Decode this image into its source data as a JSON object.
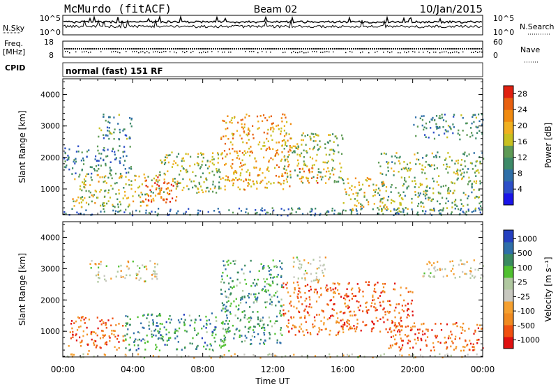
{
  "header": {
    "station": "McMurdo (fitACF)",
    "beam": "Beam 02",
    "date": "10/Jan/2015"
  },
  "status_panels": {
    "nsky_label": "N.Sky",
    "nsky_ticks": [
      "10^5",
      "10^0"
    ],
    "nsearch_label": "N.Search",
    "nsearch_ticks": [
      "10^5",
      "10^0"
    ],
    "freq_label": "Freq.",
    "freq_unit": "[MHz]",
    "freq_ticks": [
      "18",
      "8"
    ],
    "nave_label": "Nave",
    "nave_ticks": [
      "60",
      "0"
    ],
    "cpid_label": "CPID",
    "cpid_value": "normal (fast) 151 RF"
  },
  "chart_data": [
    {
      "type": "heatmap",
      "name": "power",
      "ylabel": "Slant Range [km]",
      "xlabel": "Time UT",
      "x_ticks": [
        "00:00",
        "04:00",
        "08:00",
        "12:00",
        "16:00",
        "20:00",
        "00:00"
      ],
      "xlim_hours": [
        0,
        24
      ],
      "ylim": [
        180,
        4500
      ],
      "y_ticks": [
        1000,
        2000,
        3000,
        4000
      ],
      "colorbar": {
        "label": "Power [dB]",
        "ticks": [
          "4",
          "8",
          "12",
          "16",
          "20",
          "24",
          "28"
        ],
        "range": [
          0,
          30
        ],
        "colors": [
          "#1a14e8",
          "#2d4fc8",
          "#2f6fa8",
          "#3d8a68",
          "#5e9a55",
          "#c8c020",
          "#f0b020",
          "#f08a10",
          "#e86010",
          "#e02010"
        ]
      },
      "echo_regions": [
        {
          "t0": 0.0,
          "t1": 24.0,
          "r0": 180,
          "r1": 420,
          "level": 0.3
        },
        {
          "t0": 0.5,
          "t1": 5.5,
          "r0": 450,
          "r1": 1500,
          "level": 0.55
        },
        {
          "t0": 4.5,
          "t1": 6.5,
          "r0": 600,
          "r1": 1400,
          "level": 0.85
        },
        {
          "t0": 5.5,
          "t1": 9.0,
          "r0": 900,
          "r1": 2200,
          "level": 0.5
        },
        {
          "t0": 9.0,
          "t1": 13.0,
          "r0": 1000,
          "r1": 3400,
          "level": 0.7
        },
        {
          "t0": 12.5,
          "t1": 16.0,
          "r0": 1200,
          "r1": 2800,
          "level": 0.5
        },
        {
          "t0": 13.5,
          "t1": 15.5,
          "r0": 1200,
          "r1": 1700,
          "level": 0.8
        },
        {
          "t0": 16.0,
          "t1": 18.5,
          "r0": 300,
          "r1": 1400,
          "level": 0.6
        },
        {
          "t0": 18.0,
          "t1": 24.0,
          "r0": 300,
          "r1": 2200,
          "level": 0.45
        },
        {
          "t0": 20.0,
          "t1": 24.0,
          "r0": 2600,
          "r1": 3400,
          "level": 0.35
        },
        {
          "t0": 2.0,
          "t1": 4.0,
          "r0": 2600,
          "r1": 3400,
          "level": 0.35
        },
        {
          "t0": 0.0,
          "t1": 4.0,
          "r0": 1500,
          "r1": 2400,
          "level": 0.3
        }
      ]
    },
    {
      "type": "heatmap",
      "name": "velocity",
      "ylabel": "Slant Range [km]",
      "xlabel": "Time UT",
      "x_ticks": [
        "00:00",
        "04:00",
        "08:00",
        "12:00",
        "16:00",
        "20:00",
        "00:00"
      ],
      "xlim_hours": [
        0,
        24
      ],
      "ylim": [
        180,
        4500
      ],
      "y_ticks": [
        1000,
        2000,
        3000,
        4000
      ],
      "colorbar": {
        "label": "Velocity [m s⁻¹]",
        "ticks": [
          "1000",
          "500",
          "100",
          "25",
          "-25",
          "-100",
          "-500",
          "-1000"
        ],
        "range": [
          -1000,
          1000
        ],
        "colors": [
          "#e01010",
          "#f05010",
          "#f08a20",
          "#f5a030",
          "#c8c8c0",
          "#b0c8a0",
          "#50c030",
          "#3a8a60",
          "#2f6fa8",
          "#2540c0"
        ]
      },
      "echo_regions": [
        {
          "t0": 0.0,
          "t1": 24.0,
          "r0": 180,
          "r1": 300,
          "level": 0.45
        },
        {
          "t0": 0.3,
          "t1": 3.5,
          "r0": 400,
          "r1": 1500,
          "level": 0.2
        },
        {
          "t0": 3.5,
          "t1": 9.5,
          "r0": 400,
          "r1": 1600,
          "level": 0.75
        },
        {
          "t0": 9.0,
          "t1": 12.5,
          "r0": 600,
          "r1": 3300,
          "level": 0.72
        },
        {
          "t0": 12.5,
          "t1": 16.0,
          "r0": 900,
          "r1": 2600,
          "level": 0.22
        },
        {
          "t0": 16.0,
          "t1": 20.0,
          "r0": 1000,
          "r1": 2600,
          "level": 0.18
        },
        {
          "t0": 18.5,
          "t1": 24.0,
          "r0": 400,
          "r1": 1300,
          "level": 0.2
        },
        {
          "t0": 20.5,
          "t1": 24.0,
          "r0": 2700,
          "r1": 3300,
          "level": 0.45
        },
        {
          "t0": 1.5,
          "t1": 5.5,
          "r0": 2600,
          "r1": 3300,
          "level": 0.45
        },
        {
          "t0": 13.0,
          "t1": 15.0,
          "r0": 2600,
          "r1": 3400,
          "level": 0.45
        }
      ]
    }
  ]
}
